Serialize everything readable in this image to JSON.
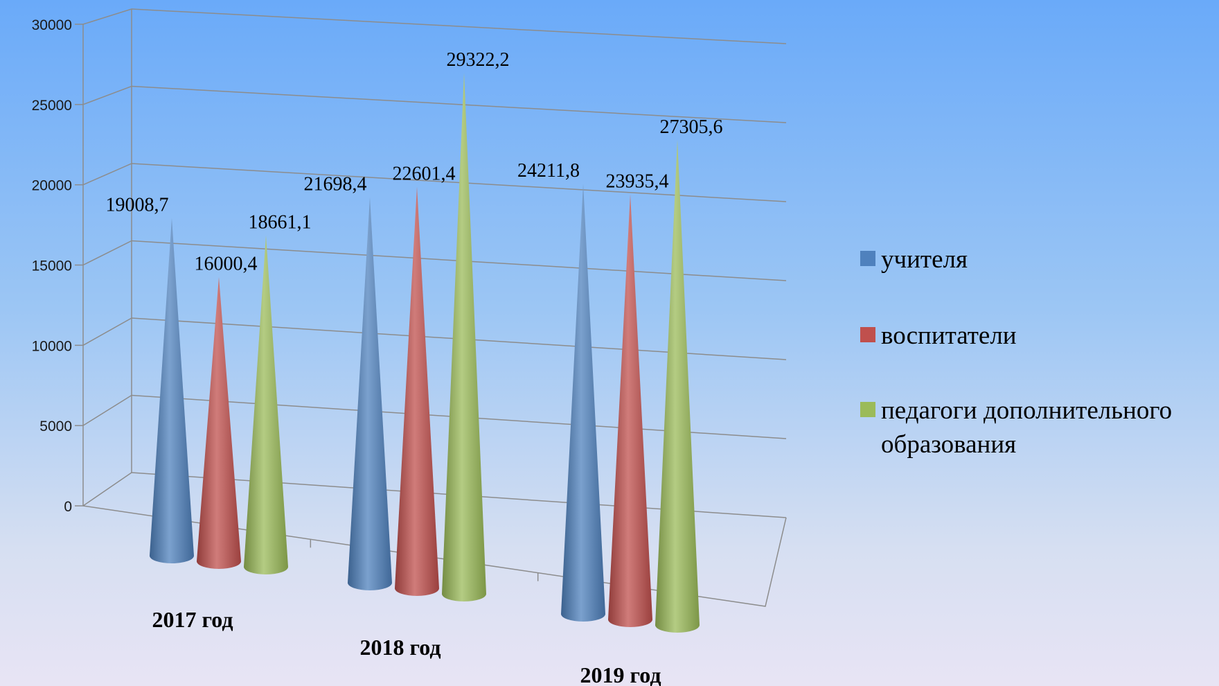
{
  "chart_data": {
    "type": "bar",
    "style": "3d-cone",
    "categories": [
      "2017 год",
      "2018 год",
      "2019 год"
    ],
    "series": [
      {
        "name": "учителя",
        "color": "#4f81bd",
        "values": [
          19008.7,
          21698.4,
          24211.8
        ],
        "labels": [
          "19008,7",
          "21698,4",
          "24211,8"
        ]
      },
      {
        "name": "воспитатели",
        "color": "#c0504d",
        "values": [
          16000.4,
          22601.4,
          23935.4
        ],
        "labels": [
          "16000,4",
          "22601,4",
          "23935,4"
        ]
      },
      {
        "name": "педагоги дополнительного образования",
        "color": "#9bbb59",
        "values": [
          18661.1,
          29322.2,
          27305.6
        ],
        "labels": [
          "18661,1",
          "29322,2",
          "27305,6"
        ],
        "legend_lines": [
          "педагоги дополнительного",
          "образования"
        ]
      }
    ],
    "yticks": [
      "0",
      "5000",
      "10000",
      "15000",
      "20000",
      "25000",
      "30000"
    ],
    "ylim": [
      0,
      30000
    ],
    "grid": true,
    "legend_position": "right"
  }
}
